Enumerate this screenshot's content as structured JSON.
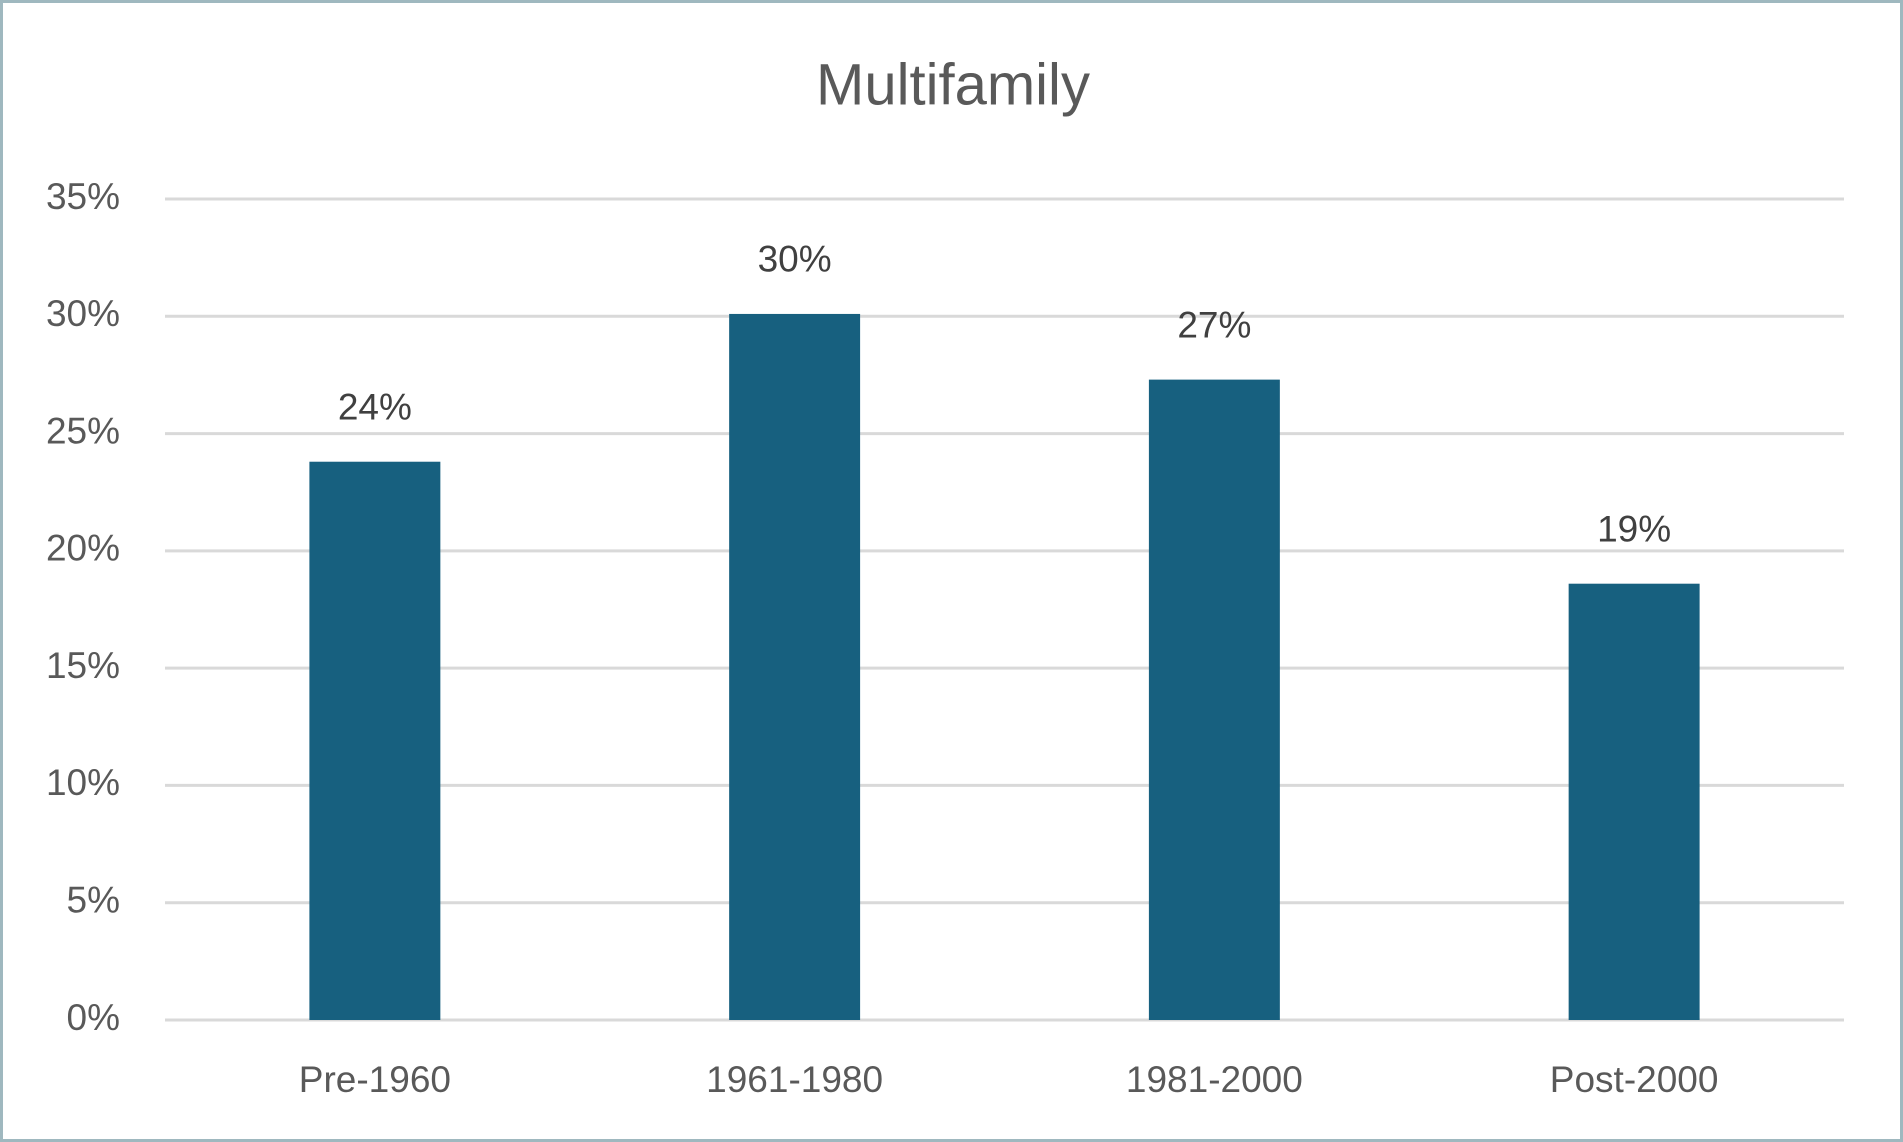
{
  "chart_data": {
    "type": "bar",
    "title": "Multifamily",
    "categories": [
      "Pre-1960",
      "1961-1980",
      "1981-2000",
      "Post-2000"
    ],
    "values": [
      23.8,
      30.1,
      27.3,
      18.6
    ],
    "value_labels": [
      "24%",
      "30%",
      "27%",
      "19%"
    ],
    "color": "#17607f",
    "ylim": [
      0,
      35
    ],
    "yticks": [
      {
        "value": 0,
        "label": "0%"
      },
      {
        "value": 5,
        "label": "5%"
      },
      {
        "value": 10,
        "label": "10%"
      },
      {
        "value": 15,
        "label": "15%"
      },
      {
        "value": 20,
        "label": "20%"
      },
      {
        "value": 25,
        "label": "25%"
      },
      {
        "value": 30,
        "label": "30%"
      },
      {
        "value": 35,
        "label": "35%"
      }
    ],
    "grid": true
  }
}
